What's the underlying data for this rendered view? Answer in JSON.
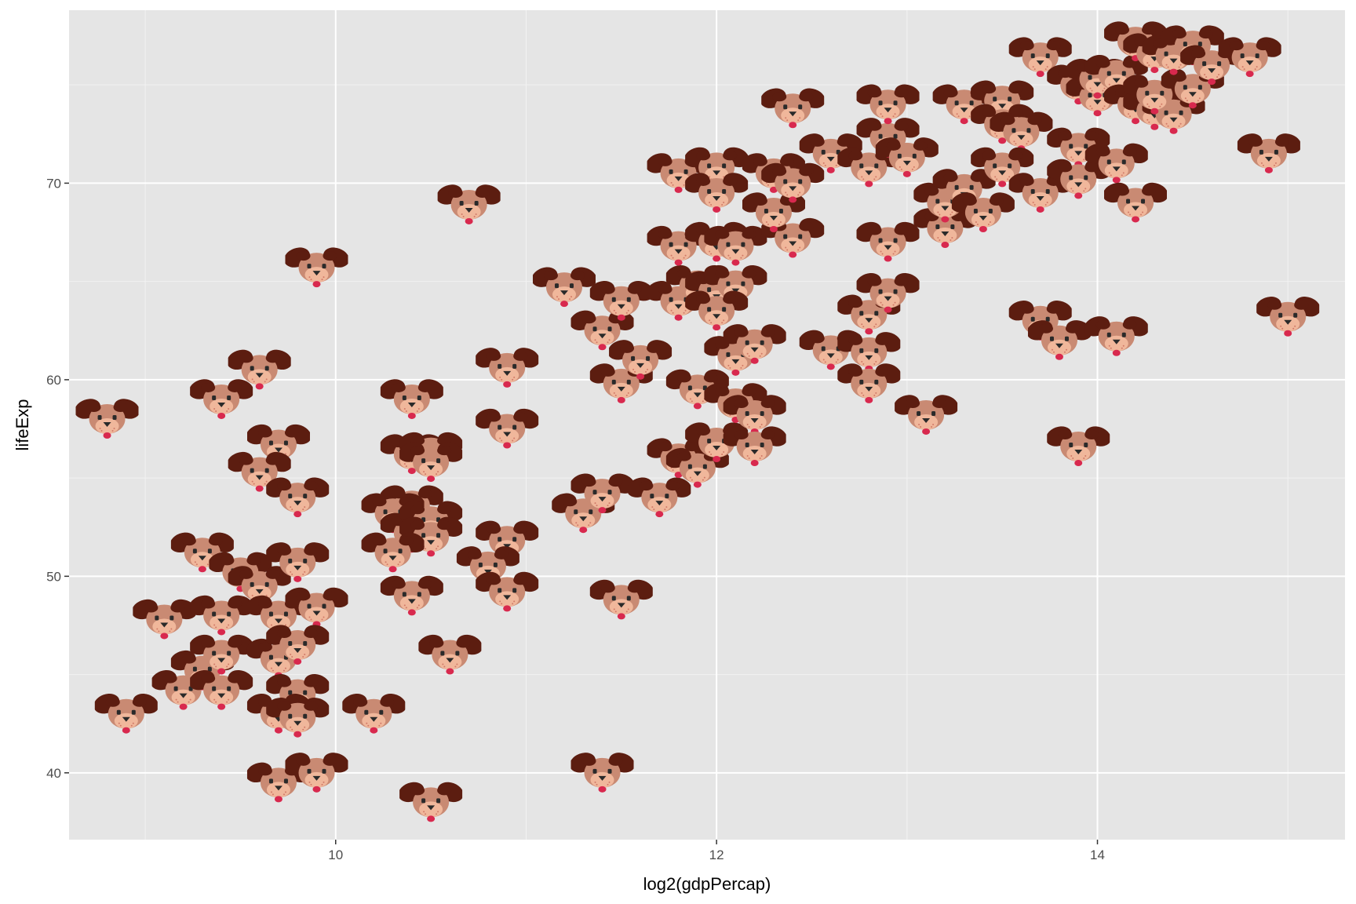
{
  "chart_data": {
    "type": "scatter",
    "marker": "dog-face-emoji",
    "xlabel": "log2(gdpPercap)",
    "ylabel": "lifeExp",
    "xlim": [
      8.6,
      15.3
    ],
    "ylim": [
      36.6,
      78.8
    ],
    "x_major_ticks": [
      10,
      12,
      14
    ],
    "y_major_ticks": [
      40,
      50,
      60,
      70
    ],
    "x_tick_labels": [
      "10",
      "12",
      "14"
    ],
    "y_tick_labels": [
      "40",
      "50",
      "60",
      "70"
    ],
    "grid": true,
    "legend": "none",
    "colors": {
      "panel": "#e5e5e5",
      "grid": "#ffffff",
      "ear": "#5c1d10",
      "face": "#c98a73",
      "muzzle": "#f0b79b",
      "tongue": "#d8294e",
      "eye": "#2a2a2a"
    },
    "points": [
      [
        8.8,
        58.0
      ],
      [
        9.4,
        59.0
      ],
      [
        9.6,
        60.5
      ],
      [
        9.9,
        65.7
      ],
      [
        10.7,
        68.9
      ],
      [
        9.7,
        56.7
      ],
      [
        9.6,
        55.3
      ],
      [
        9.8,
        54.0
      ],
      [
        8.9,
        43.0
      ],
      [
        9.2,
        44.2
      ],
      [
        9.3,
        45.2
      ],
      [
        9.1,
        47.8
      ],
      [
        9.4,
        46.0
      ],
      [
        9.4,
        44.2
      ],
      [
        9.4,
        48.0
      ],
      [
        9.3,
        51.2
      ],
      [
        9.5,
        50.2
      ],
      [
        9.6,
        49.5
      ],
      [
        9.7,
        48.0
      ],
      [
        9.8,
        50.7
      ],
      [
        9.9,
        48.4
      ],
      [
        9.7,
        45.8
      ],
      [
        9.8,
        46.5
      ],
      [
        9.8,
        44.0
      ],
      [
        9.7,
        43.0
      ],
      [
        9.8,
        42.8
      ],
      [
        10.2,
        43.0
      ],
      [
        9.7,
        39.5
      ],
      [
        9.9,
        40.0
      ],
      [
        10.5,
        38.5
      ],
      [
        10.4,
        59.0
      ],
      [
        10.4,
        56.2
      ],
      [
        10.5,
        56.3
      ],
      [
        10.5,
        55.8
      ],
      [
        10.4,
        53.6
      ],
      [
        10.3,
        53.2
      ],
      [
        10.4,
        52.2
      ],
      [
        10.5,
        52.8
      ],
      [
        10.5,
        52.0
      ],
      [
        10.3,
        51.2
      ],
      [
        10.4,
        49.0
      ],
      [
        10.6,
        46.0
      ],
      [
        10.9,
        60.6
      ],
      [
        10.9,
        57.5
      ],
      [
        10.9,
        51.8
      ],
      [
        10.8,
        50.5
      ],
      [
        10.9,
        49.2
      ],
      [
        11.3,
        53.2
      ],
      [
        11.4,
        54.2
      ],
      [
        11.4,
        40.0
      ],
      [
        11.5,
        48.8
      ],
      [
        11.2,
        64.7
      ],
      [
        11.4,
        62.5
      ],
      [
        11.5,
        64.0
      ],
      [
        11.5,
        59.8
      ],
      [
        11.6,
        61.0
      ],
      [
        11.7,
        54.0
      ],
      [
        11.8,
        64.0
      ],
      [
        11.9,
        64.8
      ],
      [
        12.0,
        64.5
      ],
      [
        12.1,
        64.8
      ],
      [
        11.9,
        59.5
      ],
      [
        11.8,
        56.0
      ],
      [
        11.9,
        55.5
      ],
      [
        12.0,
        56.8
      ],
      [
        12.1,
        58.8
      ],
      [
        12.2,
        58.2
      ],
      [
        12.2,
        56.6
      ],
      [
        12.0,
        63.5
      ],
      [
        12.1,
        61.2
      ],
      [
        12.2,
        61.8
      ],
      [
        11.8,
        66.8
      ],
      [
        12.0,
        67.0
      ],
      [
        12.1,
        66.8
      ],
      [
        12.4,
        67.2
      ],
      [
        12.3,
        68.5
      ],
      [
        11.8,
        70.5
      ],
      [
        12.0,
        70.8
      ],
      [
        12.0,
        69.5
      ],
      [
        12.3,
        70.5
      ],
      [
        12.4,
        70.0
      ],
      [
        12.4,
        73.8
      ],
      [
        12.6,
        71.5
      ],
      [
        12.8,
        70.8
      ],
      [
        12.9,
        72.3
      ],
      [
        13.0,
        71.3
      ],
      [
        12.9,
        74.0
      ],
      [
        12.6,
        61.5
      ],
      [
        12.8,
        61.4
      ],
      [
        12.8,
        63.3
      ],
      [
        12.9,
        64.4
      ],
      [
        12.8,
        59.8
      ],
      [
        13.1,
        58.2
      ],
      [
        12.9,
        67.0
      ],
      [
        13.2,
        67.7
      ],
      [
        13.2,
        69.0
      ],
      [
        13.3,
        69.7
      ],
      [
        13.4,
        68.5
      ],
      [
        13.3,
        74.0
      ],
      [
        13.5,
        74.2
      ],
      [
        13.5,
        73.0
      ],
      [
        13.6,
        72.6
      ],
      [
        13.5,
        70.8
      ],
      [
        13.7,
        69.5
      ],
      [
        13.7,
        63.0
      ],
      [
        13.8,
        62.0
      ],
      [
        14.1,
        62.2
      ],
      [
        13.9,
        56.6
      ],
      [
        13.9,
        71.8
      ],
      [
        13.9,
        70.2
      ],
      [
        14.1,
        71.0
      ],
      [
        14.2,
        69.0
      ],
      [
        13.7,
        76.4
      ],
      [
        13.9,
        75.0
      ],
      [
        14.0,
        74.4
      ],
      [
        14.0,
        75.3
      ],
      [
        14.1,
        75.5
      ],
      [
        14.2,
        74.0
      ],
      [
        14.3,
        73.7
      ],
      [
        14.4,
        73.5
      ],
      [
        14.3,
        74.5
      ],
      [
        14.5,
        74.8
      ],
      [
        14.2,
        77.2
      ],
      [
        14.3,
        76.6
      ],
      [
        14.4,
        76.5
      ],
      [
        14.5,
        77.0
      ],
      [
        14.6,
        76.0
      ],
      [
        14.8,
        76.4
      ],
      [
        14.9,
        71.5
      ],
      [
        15.0,
        63.2
      ]
    ]
  }
}
